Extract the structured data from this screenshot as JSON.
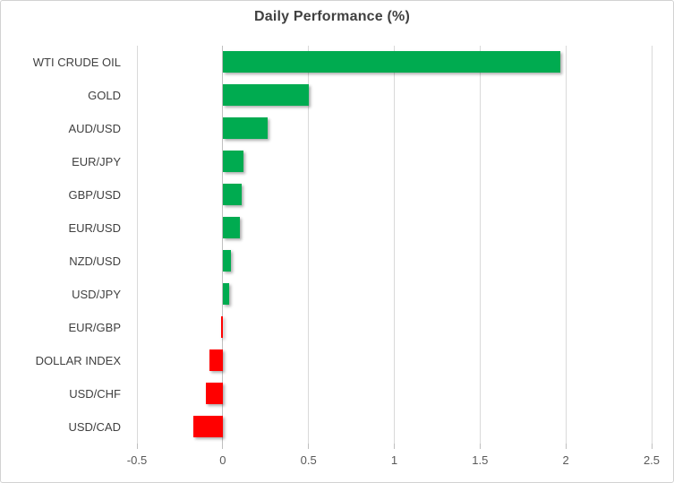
{
  "chart_data": {
    "type": "bar",
    "orientation": "horizontal",
    "title": "Daily Performance (%)",
    "categories": [
      "WTI CRUDE OIL",
      "GOLD",
      "AUD/USD",
      "EUR/JPY",
      "GBP/USD",
      "EUR/USD",
      "NZD/USD",
      "USD/JPY",
      "EUR/GBP",
      "DOLLAR INDEX",
      "USD/CHF",
      "USD/CAD"
    ],
    "values": [
      1.97,
      0.5,
      0.26,
      0.12,
      0.11,
      0.1,
      0.05,
      0.04,
      -0.01,
      -0.08,
      -0.1,
      -0.17
    ],
    "xlabel": "",
    "ylabel": "",
    "xlim": [
      -0.5,
      2.5
    ],
    "xticks": [
      -0.5,
      0,
      0.5,
      1,
      1.5,
      2,
      2.5
    ],
    "xtick_labels": [
      "-0.5",
      "0",
      "0.5",
      "1",
      "1.5",
      "2",
      "2.5"
    ],
    "grid": true,
    "legend": "none",
    "colors": {
      "positive_bar": "#00ab50",
      "negative_bar": "#ff0000",
      "gridline": "#d9d9d9",
      "axis_line": "#c0c0c0",
      "title_text": "#404040",
      "category_text": "#404040",
      "tick_text": "#595959"
    }
  }
}
